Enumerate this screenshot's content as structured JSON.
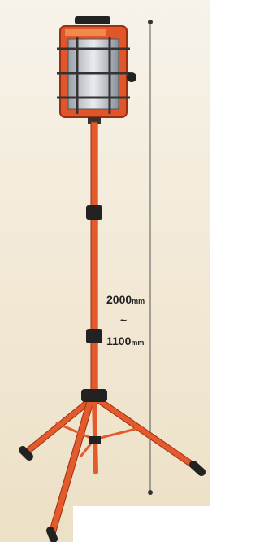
{
  "dimension": {
    "max_value": "2000",
    "max_unit": "mm",
    "separator": "~",
    "min_value": "1100",
    "min_unit": "mm"
  }
}
